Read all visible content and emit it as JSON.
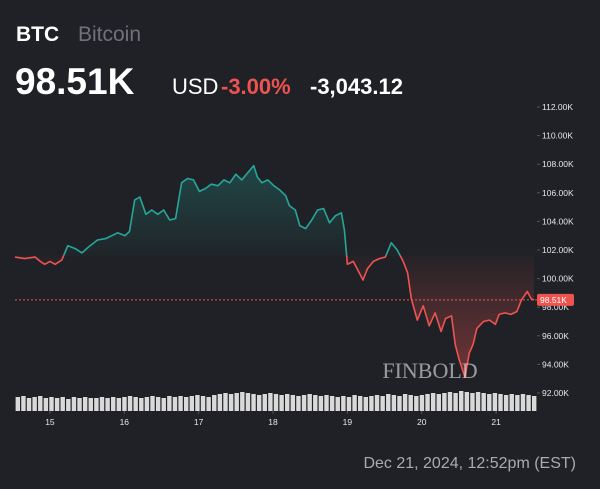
{
  "chart_data": {
    "type": "line",
    "symbol": "BTC",
    "name": "Bitcoin",
    "price": "98.51K",
    "currency": "USD",
    "change_pct": "-3.00%",
    "change_abs": "-3,043.12",
    "timestamp": "Dec 21, 2024, 12:52pm (EST)",
    "watermark": "FINBOLD",
    "color_up": "#26a69a",
    "color_down": "#ef5350",
    "baseline": 101.6,
    "x": [
      14.53,
      14.66,
      14.8,
      14.87,
      14.93,
      15.0,
      15.07,
      15.16,
      15.24,
      15.34,
      15.43,
      15.54,
      15.64,
      15.75,
      15.83,
      15.91,
      16.01,
      16.07,
      16.14,
      16.21,
      16.29,
      16.37,
      16.45,
      16.53,
      16.61,
      16.69,
      16.77,
      16.85,
      16.93,
      17.01,
      17.09,
      17.17,
      17.26,
      17.34,
      17.42,
      17.5,
      17.58,
      17.66,
      17.74,
      17.79,
      17.85,
      17.93,
      18.01,
      18.09,
      18.17,
      18.22,
      18.3,
      18.36,
      18.44,
      18.52,
      18.6,
      18.68,
      18.76,
      18.84,
      18.92,
      18.96,
      19.0,
      19.08,
      19.13,
      19.21,
      19.27,
      19.35,
      19.43,
      19.51,
      19.59,
      19.67,
      19.75,
      19.81,
      19.86,
      19.94,
      20.02,
      20.1,
      20.18,
      20.26,
      20.32,
      20.4,
      20.45,
      20.5,
      20.58,
      20.64,
      20.69,
      20.74,
      20.83,
      20.91,
      20.99,
      21.04,
      21.12,
      21.2,
      21.28,
      21.34,
      21.42,
      21.47,
      21.51
    ],
    "values": [
      101.5,
      101.4,
      101.5,
      101.2,
      101.0,
      101.2,
      101.0,
      101.3,
      102.3,
      102.1,
      101.8,
      102.3,
      102.7,
      102.8,
      103.0,
      103.2,
      103.0,
      103.3,
      105.5,
      105.7,
      104.5,
      104.8,
      104.5,
      104.8,
      104.1,
      104.2,
      106.7,
      107.0,
      106.9,
      106.1,
      106.3,
      106.6,
      106.5,
      106.9,
      106.7,
      107.3,
      106.9,
      107.4,
      107.9,
      107.1,
      106.7,
      106.9,
      106.5,
      106.2,
      105.8,
      105.1,
      104.8,
      103.7,
      103.5,
      104.1,
      104.8,
      104.9,
      103.9,
      104.4,
      104.6,
      103.4,
      101.0,
      101.2,
      100.7,
      99.9,
      100.7,
      101.2,
      101.4,
      101.5,
      102.5,
      102.0,
      101.2,
      100.4,
      98.6,
      97.1,
      98.1,
      96.7,
      97.6,
      96.3,
      97.2,
      97.4,
      95.4,
      94.4,
      93.1,
      94.8,
      95.4,
      96.5,
      97.0,
      97.1,
      96.8,
      97.5,
      97.6,
      97.5,
      97.7,
      98.5,
      99.1,
      98.6,
      98.5
    ],
    "xlim": [
      14.53,
      21.55
    ],
    "ylim": [
      92,
      112
    ],
    "xticks": [
      15,
      16,
      17,
      18,
      19,
      20,
      21
    ],
    "yticks": [
      {
        "value": 92,
        "label": "92.00K"
      },
      {
        "value": 94,
        "label": "94.00K"
      },
      {
        "value": 96,
        "label": "96.00K"
      },
      {
        "value": 98,
        "label": "98.00K"
      },
      {
        "value": 100,
        "label": "100.00K"
      },
      {
        "value": 102,
        "label": "102.00K"
      },
      {
        "value": 104,
        "label": "104.00K"
      },
      {
        "value": 106,
        "label": "106.00K"
      },
      {
        "value": 108,
        "label": "108.00K"
      },
      {
        "value": 110,
        "label": "110.00K"
      },
      {
        "value": 112,
        "label": "112.00K"
      }
    ],
    "price_marker": {
      "value": 98.51,
      "label": "98.51K"
    },
    "volume": {
      "color": "#d9d9d9",
      "values": [
        14,
        15,
        13,
        14,
        15,
        13,
        14,
        13,
        14,
        12,
        14,
        13,
        14,
        13,
        13,
        14,
        13,
        14,
        13,
        14,
        15,
        14,
        13,
        14,
        15,
        14,
        13,
        15,
        14,
        15,
        14,
        15,
        16,
        15,
        14,
        16,
        17,
        18,
        17,
        18,
        19,
        18,
        17,
        16,
        17,
        18,
        17,
        16,
        17,
        16,
        15,
        16,
        17,
        16,
        15,
        16,
        15,
        14,
        15,
        14,
        16,
        15,
        14,
        15,
        16,
        15,
        17,
        16,
        15,
        17,
        16,
        15,
        16,
        17,
        18,
        17,
        18,
        19,
        18,
        20,
        19,
        18,
        19,
        18,
        17,
        18,
        17,
        16,
        17,
        16,
        17,
        16,
        15
      ]
    }
  }
}
